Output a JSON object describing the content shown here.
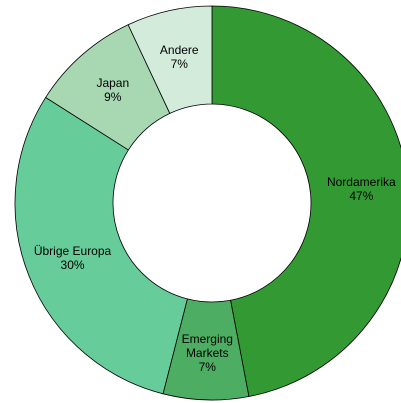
{
  "chart_data": {
    "type": "donut",
    "categories": [
      "Nordamerika",
      "Emerging Markets",
      "Übrige Europa",
      "Japan",
      "Andere"
    ],
    "values": [
      47,
      7,
      30,
      9,
      7
    ],
    "value_labels": [
      "47%",
      "7%",
      "30%",
      "9%",
      "7%"
    ],
    "colors": [
      "#339933",
      "#4dad63",
      "#66cc99",
      "#a8d8b2",
      "#d3ebdb"
    ]
  }
}
